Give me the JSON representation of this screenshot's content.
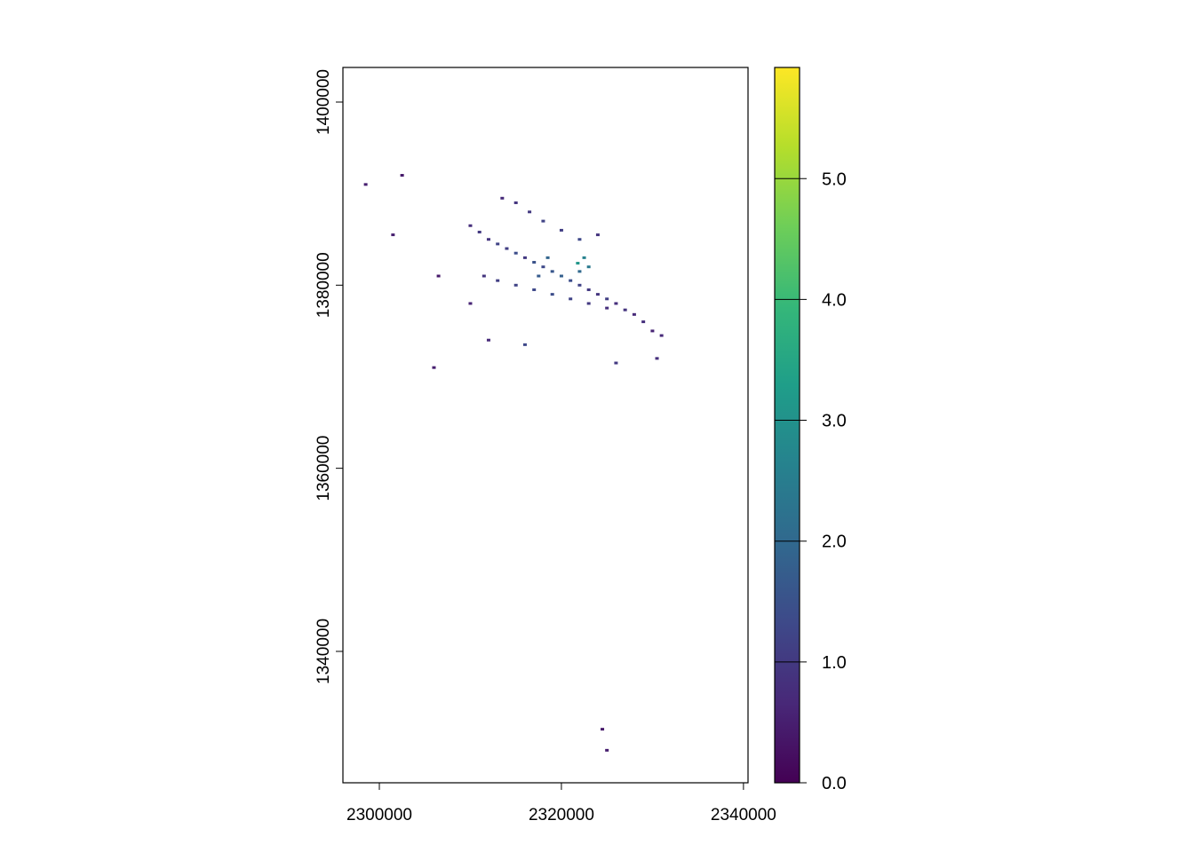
{
  "chart_data": {
    "type": "raster",
    "xlim": [
      2296000,
      2340500
    ],
    "ylim": [
      1325650,
      1403780
    ],
    "xticks": [
      2300000,
      2320000,
      2340000
    ],
    "yticks": [
      1340000,
      1360000,
      1380000,
      1400000
    ],
    "x": [
      2310000,
      2311000,
      2312000,
      2313000,
      2314000,
      2315000,
      2316000,
      2317000,
      2318000,
      2319000,
      2320000,
      2321000,
      2322000,
      2323000,
      2324000,
      2325000,
      2326000,
      2327000,
      2328000,
      2329000,
      2330000,
      2331000,
      2311500,
      2313000,
      2315000,
      2317000,
      2319000,
      2321000,
      2323000,
      2325000,
      2313500,
      2315000,
      2316500,
      2318000,
      2320000,
      2322000,
      2324000,
      2322500,
      2321800,
      2323000,
      2322000,
      2318500,
      2317500,
      2298500,
      2302500,
      2301500,
      2306500,
      2306000,
      2324500,
      2325000,
      2326000,
      2330500,
      2316000,
      2312000,
      2310000
    ],
    "y": [
      1386500,
      1385800,
      1385000,
      1384500,
      1384000,
      1383500,
      1383000,
      1382500,
      1382000,
      1381500,
      1381000,
      1380500,
      1380000,
      1379500,
      1379000,
      1378500,
      1378000,
      1377300,
      1376800,
      1376000,
      1375000,
      1374500,
      1381000,
      1380500,
      1380000,
      1379500,
      1379000,
      1378500,
      1378000,
      1377500,
      1389500,
      1389000,
      1388000,
      1387000,
      1386000,
      1385000,
      1385500,
      1383000,
      1382400,
      1382000,
      1381500,
      1383000,
      1381000,
      1391000,
      1392000,
      1385500,
      1381000,
      1371000,
      1331500,
      1329200,
      1371500,
      1372000,
      1373500,
      1374000,
      1378000
    ],
    "values": [
      0.8,
      1.0,
      0.9,
      1.2,
      1.1,
      1.4,
      1.0,
      1.5,
      1.3,
      1.6,
      1.8,
      1.4,
      1.2,
      1.0,
      0.9,
      1.1,
      0.8,
      0.9,
      0.7,
      0.8,
      0.6,
      0.7,
      0.9,
      1.1,
      1.2,
      1.3,
      1.4,
      1.2,
      1.0,
      0.8,
      0.7,
      0.9,
      1.0,
      1.2,
      1.1,
      1.3,
      0.9,
      2.6,
      3.1,
      2.4,
      2.0,
      1.9,
      1.7,
      0.5,
      0.4,
      0.5,
      0.4,
      0.5,
      0.4,
      0.5,
      1.0,
      0.8,
      1.3,
      0.7,
      0.6
    ],
    "colormap": [
      "#440154",
      "#482878",
      "#3e4989",
      "#31688e",
      "#26828e",
      "#1f9e89",
      "#35b779",
      "#6ece58",
      "#b5de2b",
      "#fde725"
    ],
    "clim": [
      0,
      5.92
    ],
    "cticks": [
      {
        "value": 0,
        "label": "0.0"
      },
      {
        "value": 1,
        "label": "1.0"
      },
      {
        "value": 2,
        "label": "2.0"
      },
      {
        "value": 3,
        "label": "3.0"
      },
      {
        "value": 4,
        "label": "4.0"
      },
      {
        "value": 5,
        "label": "5.0"
      }
    ]
  }
}
